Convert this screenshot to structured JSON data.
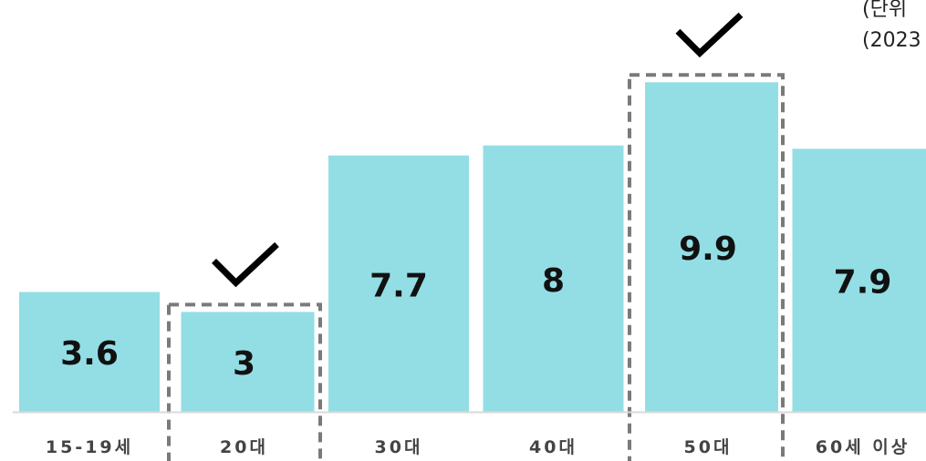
{
  "chart_data": {
    "type": "bar",
    "categories": [
      "15-19세",
      "20대",
      "30대",
      "40대",
      "50대",
      "60세 이상"
    ],
    "values": [
      3.6,
      3,
      7.7,
      8,
      9.9,
      7.9
    ],
    "highlighted": [
      "20대",
      "50대"
    ],
    "ylim": [
      0,
      10.4
    ],
    "colors": {
      "bar": "#93dee4",
      "highlight_box": "#7a7a7a",
      "check": "#000000",
      "label": "#111111",
      "axis": "#d9d9d9",
      "tick_text": "#444444"
    }
  },
  "note": {
    "line1": "(단위",
    "line2": "(2023"
  }
}
